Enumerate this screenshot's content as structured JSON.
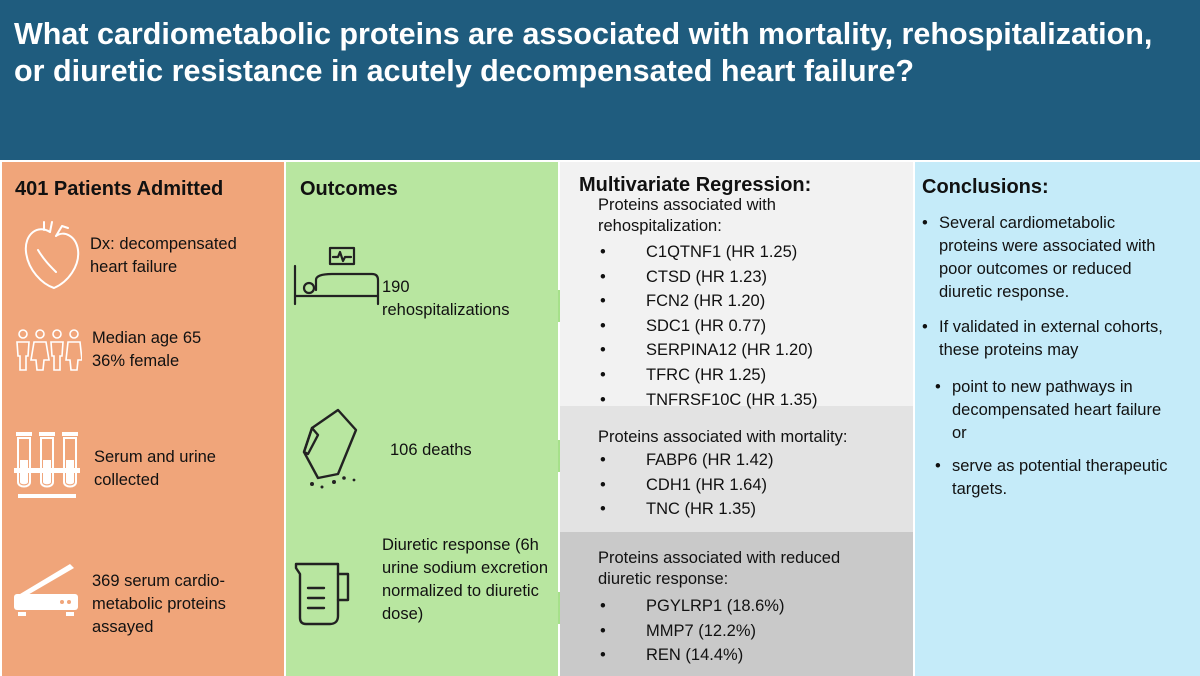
{
  "header": {
    "title": "What cardiometabolic proteins are associated with mortality, rehospitalization, or diuretic resistance in acutely decompensated heart failure?"
  },
  "patients": {
    "title": "401 Patients Admitted",
    "items": [
      {
        "icon": "heart-icon",
        "text": "Dx: decompensated heart failure"
      },
      {
        "icon": "people-icon",
        "line1": "Median age 65",
        "line2": "36% female"
      },
      {
        "icon": "test-tubes-icon",
        "text": "Serum and urine collected"
      },
      {
        "icon": "assay-plate-icon",
        "text": "369 serum cardio-metabolic proteins assayed"
      }
    ]
  },
  "outcomes": {
    "title": "Outcomes",
    "items": [
      {
        "icon": "hospital-bed-icon",
        "count": "190",
        "label": "rehospitalizations"
      },
      {
        "icon": "coffin-icon",
        "text": "106 deaths"
      },
      {
        "icon": "measuring-cup-icon",
        "text": "Diuretic response (6h urine sodium excretion normalized to diuretic dose)"
      }
    ]
  },
  "regression": {
    "title": "Multivariate Regression:",
    "groups": [
      {
        "heading": "Proteins associated with rehospitalization:",
        "proteins": [
          "C1QTNF1 (HR 1.25)",
          "CTSD (HR 1.23)",
          "FCN2 (HR 1.20)",
          "SDC1 (HR 0.77)",
          "SERPINA12 (HR 1.20)",
          "TFRC (HR 1.25)",
          "TNFRSF10C (HR 1.35)"
        ]
      },
      {
        "heading": "Proteins associated with mortality:",
        "proteins": [
          "FABP6 (HR 1.42)",
          "CDH1 (HR 1.64)",
          "TNC (HR 1.35)"
        ]
      },
      {
        "heading": "Proteins associated with reduced diuretic response:",
        "proteins": [
          "PGYLRP1 (18.6%)",
          "MMP7 (12.2%)",
          "REN (14.4%)"
        ]
      }
    ]
  },
  "conclusions": {
    "title": "Conclusions:",
    "points": [
      "Several cardiometabolic proteins were associated with poor outcomes or reduced diuretic response.",
      "If validated in external cohorts, these proteins may"
    ],
    "subpoints": [
      "point to new pathways in decompensated heart failure or",
      "serve as potential therapeutic targets."
    ]
  },
  "colors": {
    "header": "#1f5c7e",
    "patients": "#f0a57a",
    "outcomes": "#b8e6a0",
    "conclusions": "#c5ebf9",
    "arrow": "#a6e08a"
  }
}
